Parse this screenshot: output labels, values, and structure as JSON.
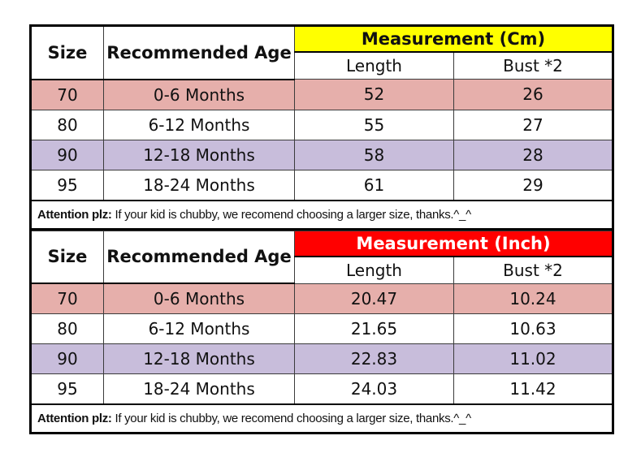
{
  "colors": {
    "yellow_header": "#ffff00",
    "red_header": "#ff0000",
    "red_header_text": "#ffffff",
    "pink_row": "#e6afab",
    "lavender_row": "#c8bddb",
    "border": "#000000",
    "text": "#111111"
  },
  "chart_data": [
    {
      "type": "table",
      "title": "Measurement (Cm)",
      "header": {
        "size": "Size",
        "age": "Recommended Age",
        "measurement": "Measurement (Cm)",
        "length": "Length",
        "bust": "Bust *2"
      },
      "rows": [
        {
          "size": "70",
          "age": "0-6 Months",
          "length": "52",
          "bust": "26"
        },
        {
          "size": "80",
          "age": "6-12 Months",
          "length": "55",
          "bust": "27"
        },
        {
          "size": "90",
          "age": "12-18 Months",
          "length": "58",
          "bust": "28"
        },
        {
          "size": "95",
          "age": "18-24 Months",
          "length": "61",
          "bust": "29"
        }
      ],
      "note": {
        "bold": "Attention plz:",
        "text": " If your kid is chubby, we recomend choosing a larger size, thanks.^_^"
      }
    },
    {
      "type": "table",
      "title": "Measurement (Inch)",
      "header": {
        "size": "Size",
        "age": "Recommended Age",
        "measurement": "Measurement (Inch)",
        "length": "Length",
        "bust": "Bust *2"
      },
      "rows": [
        {
          "size": "70",
          "age": "0-6 Months",
          "length": "20.47",
          "bust": "10.24"
        },
        {
          "size": "80",
          "age": "6-12 Months",
          "length": "21.65",
          "bust": "10.63"
        },
        {
          "size": "90",
          "age": "12-18 Months",
          "length": "22.83",
          "bust": "11.02"
        },
        {
          "size": "95",
          "age": "18-24 Months",
          "length": "24.03",
          "bust": "11.42"
        }
      ],
      "note": {
        "bold": "Attention plz:",
        "text": " If your kid is chubby, we recomend choosing a larger size, thanks.^_^"
      }
    }
  ]
}
